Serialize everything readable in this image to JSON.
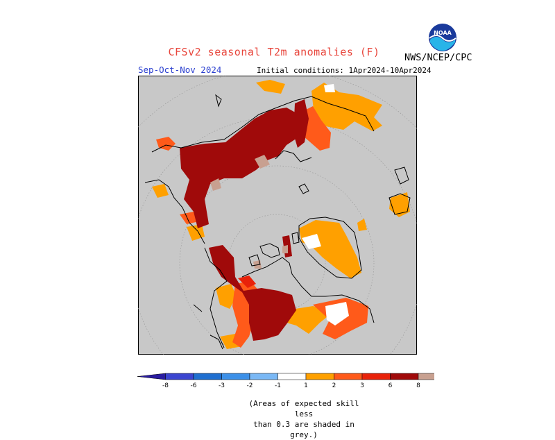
{
  "header": {
    "title": "CFSv2 seasonal T2m anomalies (F)",
    "season": "Sep-Oct-Nov 2024",
    "initial_conditions": "Initial conditions: 1Apr2024-10Apr2024",
    "agency": "NWS/NCEP/CPC",
    "logo_text": "NOAA"
  },
  "map": {
    "projection": "north polar stereographic",
    "background_color": "#c8c8c8",
    "coastline_color": "#000000"
  },
  "colorbar": {
    "categories": [
      {
        "value": "-8",
        "color": "#2a1ca0"
      },
      {
        "value": "-6",
        "color": "#3b45d0"
      },
      {
        "value": "-3",
        "color": "#1f6fd0"
      },
      {
        "value": "-2",
        "color": "#3c90e8"
      },
      {
        "value": "-1",
        "color": "#7ab8f5"
      },
      {
        "value": "",
        "color": "#ffffff"
      },
      {
        "value": "1",
        "color": "#ffa000"
      },
      {
        "value": "2",
        "color": "#ff5a1a"
      },
      {
        "value": "3",
        "color": "#e8220a"
      },
      {
        "value": "6",
        "color": "#a00a0a"
      },
      {
        "value": "8",
        "color": "#c8a090"
      },
      {
        "value": "",
        "color": "#8a5a4a"
      }
    ],
    "tick_labels": [
      "-8",
      "-6",
      "-3",
      "-2",
      "-1",
      "1",
      "2",
      "3",
      "6",
      "8"
    ]
  },
  "note": {
    "line1": "(Areas of expected skill less",
    "line2": "than 0.3 are shaded in grey.)"
  }
}
